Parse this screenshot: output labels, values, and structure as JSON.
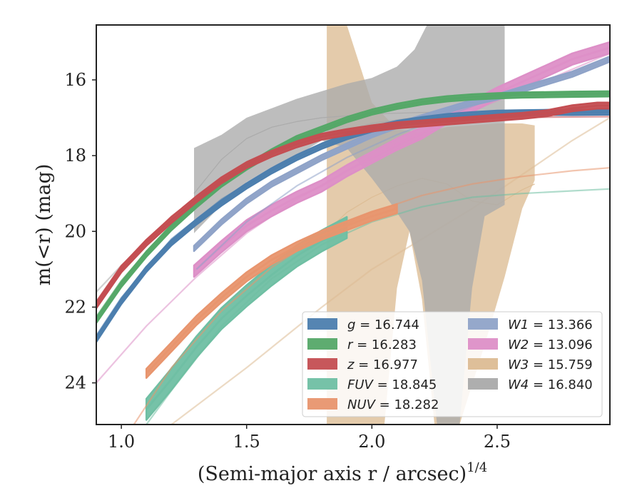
{
  "chart_data": {
    "type": "line",
    "xlabel": "(Semi-major axis r / arcsec)",
    "xlabel_exponent": "1/4",
    "ylabel": "m(<r) (mag)",
    "xlim": [
      0.9,
      2.95
    ],
    "ylim": [
      25.1,
      14.55
    ],
    "y_inverted": true,
    "xticks": [
      "1.0",
      "1.5",
      "2.0",
      "2.5"
    ],
    "yticks": [
      "16",
      "18",
      "20",
      "22",
      "24"
    ],
    "grid": false,
    "legend_placement": "lower-right",
    "series": [
      {
        "name": "g",
        "value": "16.744",
        "color": "#4c7eae",
        "measured": [
          [
            0.9,
            22.85
          ],
          [
            1.0,
            21.85
          ],
          [
            1.1,
            21.0
          ],
          [
            1.2,
            20.3
          ],
          [
            1.3,
            19.75
          ],
          [
            1.4,
            19.25
          ],
          [
            1.5,
            18.8
          ],
          [
            1.6,
            18.4
          ],
          [
            1.7,
            18.05
          ],
          [
            1.8,
            17.75
          ],
          [
            1.9,
            17.5
          ],
          [
            2.0,
            17.3
          ],
          [
            2.1,
            17.15
          ],
          [
            2.2,
            17.05
          ],
          [
            2.3,
            16.97
          ],
          [
            2.4,
            16.92
          ],
          [
            2.5,
            16.88
          ],
          [
            2.6,
            16.87
          ],
          [
            2.7,
            16.86
          ],
          [
            2.8,
            16.86
          ],
          [
            2.95,
            16.85
          ]
        ],
        "model": [
          [
            0.9,
            22.75
          ],
          [
            1.0,
            21.75
          ],
          [
            1.2,
            20.2
          ],
          [
            1.4,
            19.15
          ],
          [
            1.6,
            18.35
          ],
          [
            1.8,
            17.75
          ],
          [
            2.0,
            17.35
          ],
          [
            2.2,
            17.1
          ],
          [
            2.4,
            16.95
          ],
          [
            2.6,
            16.88
          ],
          [
            2.95,
            16.84
          ]
        ],
        "band": 0.07
      },
      {
        "name": "r",
        "value": "16.283",
        "color": "#55a868",
        "measured": [
          [
            0.9,
            22.35
          ],
          [
            1.0,
            21.4
          ],
          [
            1.1,
            20.6
          ],
          [
            1.2,
            19.9
          ],
          [
            1.3,
            19.3
          ],
          [
            1.4,
            18.75
          ],
          [
            1.5,
            18.3
          ],
          [
            1.6,
            17.9
          ],
          [
            1.7,
            17.55
          ],
          [
            1.8,
            17.3
          ],
          [
            1.9,
            17.05
          ],
          [
            2.0,
            16.85
          ],
          [
            2.1,
            16.7
          ],
          [
            2.2,
            16.58
          ],
          [
            2.3,
            16.5
          ],
          [
            2.4,
            16.45
          ],
          [
            2.5,
            16.42
          ],
          [
            2.6,
            16.4
          ],
          [
            2.7,
            16.39
          ],
          [
            2.8,
            16.38
          ],
          [
            2.95,
            16.37
          ]
        ],
        "model": [
          [
            0.9,
            22.25
          ],
          [
            1.0,
            21.3
          ],
          [
            1.2,
            19.8
          ],
          [
            1.4,
            18.7
          ],
          [
            1.6,
            17.9
          ],
          [
            1.8,
            17.3
          ],
          [
            2.0,
            16.88
          ],
          [
            2.2,
            16.6
          ],
          [
            2.4,
            16.45
          ],
          [
            2.6,
            16.37
          ],
          [
            2.95,
            16.32
          ]
        ],
        "band": 0.07
      },
      {
        "name": "z",
        "value": "16.977",
        "color": "#c44e52",
        "measured": [
          [
            0.9,
            21.95
          ],
          [
            1.0,
            21.0
          ],
          [
            1.1,
            20.3
          ],
          [
            1.2,
            19.7
          ],
          [
            1.3,
            19.15
          ],
          [
            1.4,
            18.65
          ],
          [
            1.5,
            18.25
          ],
          [
            1.6,
            17.95
          ],
          [
            1.7,
            17.7
          ],
          [
            1.8,
            17.5
          ],
          [
            1.9,
            17.38
          ],
          [
            2.0,
            17.28
          ],
          [
            2.1,
            17.2
          ],
          [
            2.2,
            17.15
          ],
          [
            2.3,
            17.1
          ],
          [
            2.4,
            17.05
          ],
          [
            2.5,
            17.0
          ],
          [
            2.6,
            16.95
          ],
          [
            2.7,
            16.88
          ],
          [
            2.8,
            16.75
          ],
          [
            2.9,
            16.68
          ],
          [
            2.95,
            16.68
          ]
        ],
        "model": [
          [
            0.9,
            21.85
          ],
          [
            1.0,
            20.9
          ],
          [
            1.2,
            19.6
          ],
          [
            1.4,
            18.6
          ],
          [
            1.6,
            17.9
          ],
          [
            1.8,
            17.45
          ],
          [
            2.0,
            17.2
          ],
          [
            2.2,
            17.08
          ],
          [
            2.4,
            17.02
          ],
          [
            2.6,
            16.99
          ],
          [
            2.95,
            16.97
          ]
        ],
        "band": 0.08
      },
      {
        "name": "FUV",
        "value": "18.845",
        "color": "#6fbfa3",
        "measured": [
          [
            1.1,
            24.7
          ],
          [
            1.2,
            23.9
          ],
          [
            1.3,
            23.05
          ],
          [
            1.4,
            22.3
          ],
          [
            1.5,
            21.7
          ],
          [
            1.6,
            21.15
          ],
          [
            1.7,
            20.65
          ],
          [
            1.8,
            20.25
          ],
          [
            1.9,
            19.9
          ]
        ],
        "model": [
          [
            1.1,
            25.1
          ],
          [
            1.2,
            24.2
          ],
          [
            1.4,
            22.5
          ],
          [
            1.6,
            21.25
          ],
          [
            1.8,
            20.35
          ],
          [
            2.0,
            19.75
          ],
          [
            2.2,
            19.35
          ],
          [
            2.4,
            19.1
          ],
          [
            2.6,
            19.0
          ],
          [
            2.8,
            18.93
          ],
          [
            2.95,
            18.88
          ]
        ],
        "band": 0.28
      },
      {
        "name": "NUV",
        "value": "18.282",
        "color": "#e8956e",
        "measured": [
          [
            1.1,
            23.75
          ],
          [
            1.2,
            23.05
          ],
          [
            1.3,
            22.35
          ],
          [
            1.4,
            21.75
          ],
          [
            1.5,
            21.2
          ],
          [
            1.6,
            20.75
          ],
          [
            1.7,
            20.4
          ],
          [
            1.8,
            20.1
          ],
          [
            1.9,
            19.85
          ],
          [
            2.0,
            19.6
          ],
          [
            2.1,
            19.4
          ]
        ],
        "model": [
          [
            1.05,
            25.1
          ],
          [
            1.2,
            23.6
          ],
          [
            1.4,
            22.1
          ],
          [
            1.6,
            20.95
          ],
          [
            1.8,
            20.1
          ],
          [
            2.0,
            19.5
          ],
          [
            2.2,
            19.05
          ],
          [
            2.4,
            18.75
          ],
          [
            2.6,
            18.55
          ],
          [
            2.8,
            18.4
          ],
          [
            2.95,
            18.32
          ]
        ],
        "band": 0.12
      },
      {
        "name": "W1",
        "value": "13.366",
        "color": "#8fa3c8",
        "measured": [
          [
            1.29,
            20.45
          ],
          [
            1.4,
            19.75
          ],
          [
            1.5,
            19.2
          ],
          [
            1.6,
            18.75
          ],
          [
            1.7,
            18.4
          ],
          [
            1.8,
            18.05
          ],
          [
            1.9,
            17.75
          ],
          [
            2.0,
            17.45
          ],
          [
            2.1,
            17.2
          ],
          [
            2.2,
            17.0
          ],
          [
            2.3,
            16.8
          ],
          [
            2.4,
            16.6
          ],
          [
            2.5,
            16.45
          ],
          [
            2.6,
            16.25
          ],
          [
            2.7,
            16.05
          ],
          [
            2.8,
            15.85
          ],
          [
            2.95,
            15.45
          ]
        ],
        "model": [
          [
            1.3,
            21.0
          ],
          [
            1.5,
            19.75
          ],
          [
            1.7,
            18.8
          ],
          [
            1.9,
            18.05
          ],
          [
            2.1,
            17.45
          ],
          [
            2.3,
            16.95
          ],
          [
            2.5,
            16.45
          ],
          [
            2.7,
            16.0
          ],
          [
            2.95,
            15.5
          ]
        ],
        "band": 0.07
      },
      {
        "name": "W2",
        "value": "13.096",
        "color": "#dd8fc7",
        "measured": [
          [
            1.29,
            21.05
          ],
          [
            1.4,
            20.4
          ],
          [
            1.5,
            19.85
          ],
          [
            1.6,
            19.45
          ],
          [
            1.7,
            19.1
          ],
          [
            1.8,
            18.8
          ],
          [
            1.9,
            18.4
          ],
          [
            2.0,
            18.05
          ],
          [
            2.1,
            17.7
          ],
          [
            2.2,
            17.4
          ],
          [
            2.3,
            17.0
          ],
          [
            2.4,
            16.7
          ],
          [
            2.5,
            16.35
          ],
          [
            2.6,
            16.05
          ],
          [
            2.7,
            15.75
          ],
          [
            2.8,
            15.45
          ],
          [
            2.95,
            15.15
          ]
        ],
        "model": [
          [
            0.9,
            24.0
          ],
          [
            1.1,
            22.5
          ],
          [
            1.3,
            21.2
          ],
          [
            1.5,
            20.05
          ],
          [
            1.7,
            19.15
          ],
          [
            1.9,
            18.4
          ],
          [
            2.1,
            17.75
          ],
          [
            2.3,
            17.1
          ],
          [
            2.5,
            16.55
          ],
          [
            2.7,
            16.0
          ],
          [
            2.95,
            15.3
          ]
        ],
        "band": 0.15
      },
      {
        "name": "W3",
        "value": "15.759",
        "color": "#dcbc94",
        "measured": [
          [
            1.82,
            20.0
          ],
          [
            1.9,
            19.5
          ],
          [
            2.0,
            19.1
          ],
          [
            2.1,
            18.8
          ],
          [
            2.2,
            18.6
          ],
          [
            2.3,
            18.75
          ],
          [
            2.4,
            19.2
          ],
          [
            2.5,
            19.3
          ],
          [
            2.6,
            18.9
          ],
          [
            2.65,
            18.75
          ]
        ],
        "model": [
          [
            1.2,
            25.1
          ],
          [
            1.5,
            23.6
          ],
          [
            1.8,
            22.0
          ],
          [
            2.0,
            21.0
          ],
          [
            2.2,
            20.2
          ],
          [
            2.4,
            19.4
          ],
          [
            2.6,
            18.5
          ],
          [
            2.8,
            17.6
          ],
          [
            2.95,
            17.0
          ]
        ],
        "upper": [
          [
            1.82,
            14.55
          ],
          [
            1.9,
            14.55
          ],
          [
            2.0,
            16.6
          ],
          [
            2.1,
            17.3
          ],
          [
            2.2,
            17.4
          ],
          [
            2.3,
            17.25
          ],
          [
            2.4,
            17.2
          ],
          [
            2.5,
            17.15
          ],
          [
            2.6,
            17.15
          ],
          [
            2.65,
            17.2
          ]
        ],
        "lower": [
          [
            1.82,
            25.1
          ],
          [
            1.9,
            25.1
          ],
          [
            2.0,
            25.1
          ],
          [
            2.05,
            25.1
          ],
          [
            2.1,
            21.5
          ],
          [
            2.15,
            20.0
          ],
          [
            2.2,
            21.8
          ],
          [
            2.25,
            25.1
          ],
          [
            2.35,
            25.1
          ],
          [
            2.45,
            23.0
          ],
          [
            2.53,
            21.2
          ],
          [
            2.6,
            19.4
          ],
          [
            2.65,
            18.65
          ]
        ]
      },
      {
        "name": "W4",
        "value": "16.840",
        "color": "#aaaaaa",
        "measured": [
          [
            1.29,
            19.0
          ],
          [
            1.4,
            18.1
          ],
          [
            1.5,
            17.55
          ],
          [
            1.6,
            17.25
          ],
          [
            1.7,
            17.1
          ],
          [
            1.8,
            17.0
          ],
          [
            1.9,
            16.95
          ],
          [
            2.0,
            16.9
          ],
          [
            2.1,
            16.88
          ],
          [
            2.2,
            16.86
          ],
          [
            2.3,
            16.85
          ],
          [
            2.4,
            16.84
          ],
          [
            2.53,
            16.84
          ]
        ],
        "model": [
          [
            0.9,
            21.6
          ],
          [
            1.0,
            20.9
          ],
          [
            1.2,
            19.7
          ],
          [
            1.4,
            18.75
          ],
          [
            1.6,
            18.0
          ],
          [
            1.8,
            17.5
          ],
          [
            2.0,
            17.15
          ],
          [
            2.2,
            16.97
          ],
          [
            2.4,
            16.88
          ],
          [
            2.6,
            16.85
          ],
          [
            2.95,
            16.84
          ]
        ],
        "upper": [
          [
            1.29,
            17.8
          ],
          [
            1.4,
            17.45
          ],
          [
            1.5,
            17.0
          ],
          [
            1.6,
            16.75
          ],
          [
            1.7,
            16.5
          ],
          [
            1.8,
            16.3
          ],
          [
            1.9,
            16.1
          ],
          [
            2.0,
            15.95
          ],
          [
            2.1,
            15.65
          ],
          [
            2.17,
            15.2
          ],
          [
            2.22,
            14.55
          ],
          [
            2.53,
            14.55
          ]
        ],
        "lower": [
          [
            1.29,
            20.05
          ],
          [
            1.4,
            19.3
          ],
          [
            1.5,
            18.7
          ],
          [
            1.6,
            18.3
          ],
          [
            1.7,
            18.0
          ],
          [
            1.8,
            17.6
          ],
          [
            1.9,
            17.8
          ],
          [
            2.0,
            18.6
          ],
          [
            2.08,
            19.3
          ],
          [
            2.15,
            20.0
          ],
          [
            2.2,
            21.3
          ],
          [
            2.26,
            25.1
          ],
          [
            2.35,
            25.1
          ],
          [
            2.4,
            21.5
          ],
          [
            2.45,
            19.6
          ],
          [
            2.53,
            19.3
          ]
        ]
      }
    ]
  }
}
